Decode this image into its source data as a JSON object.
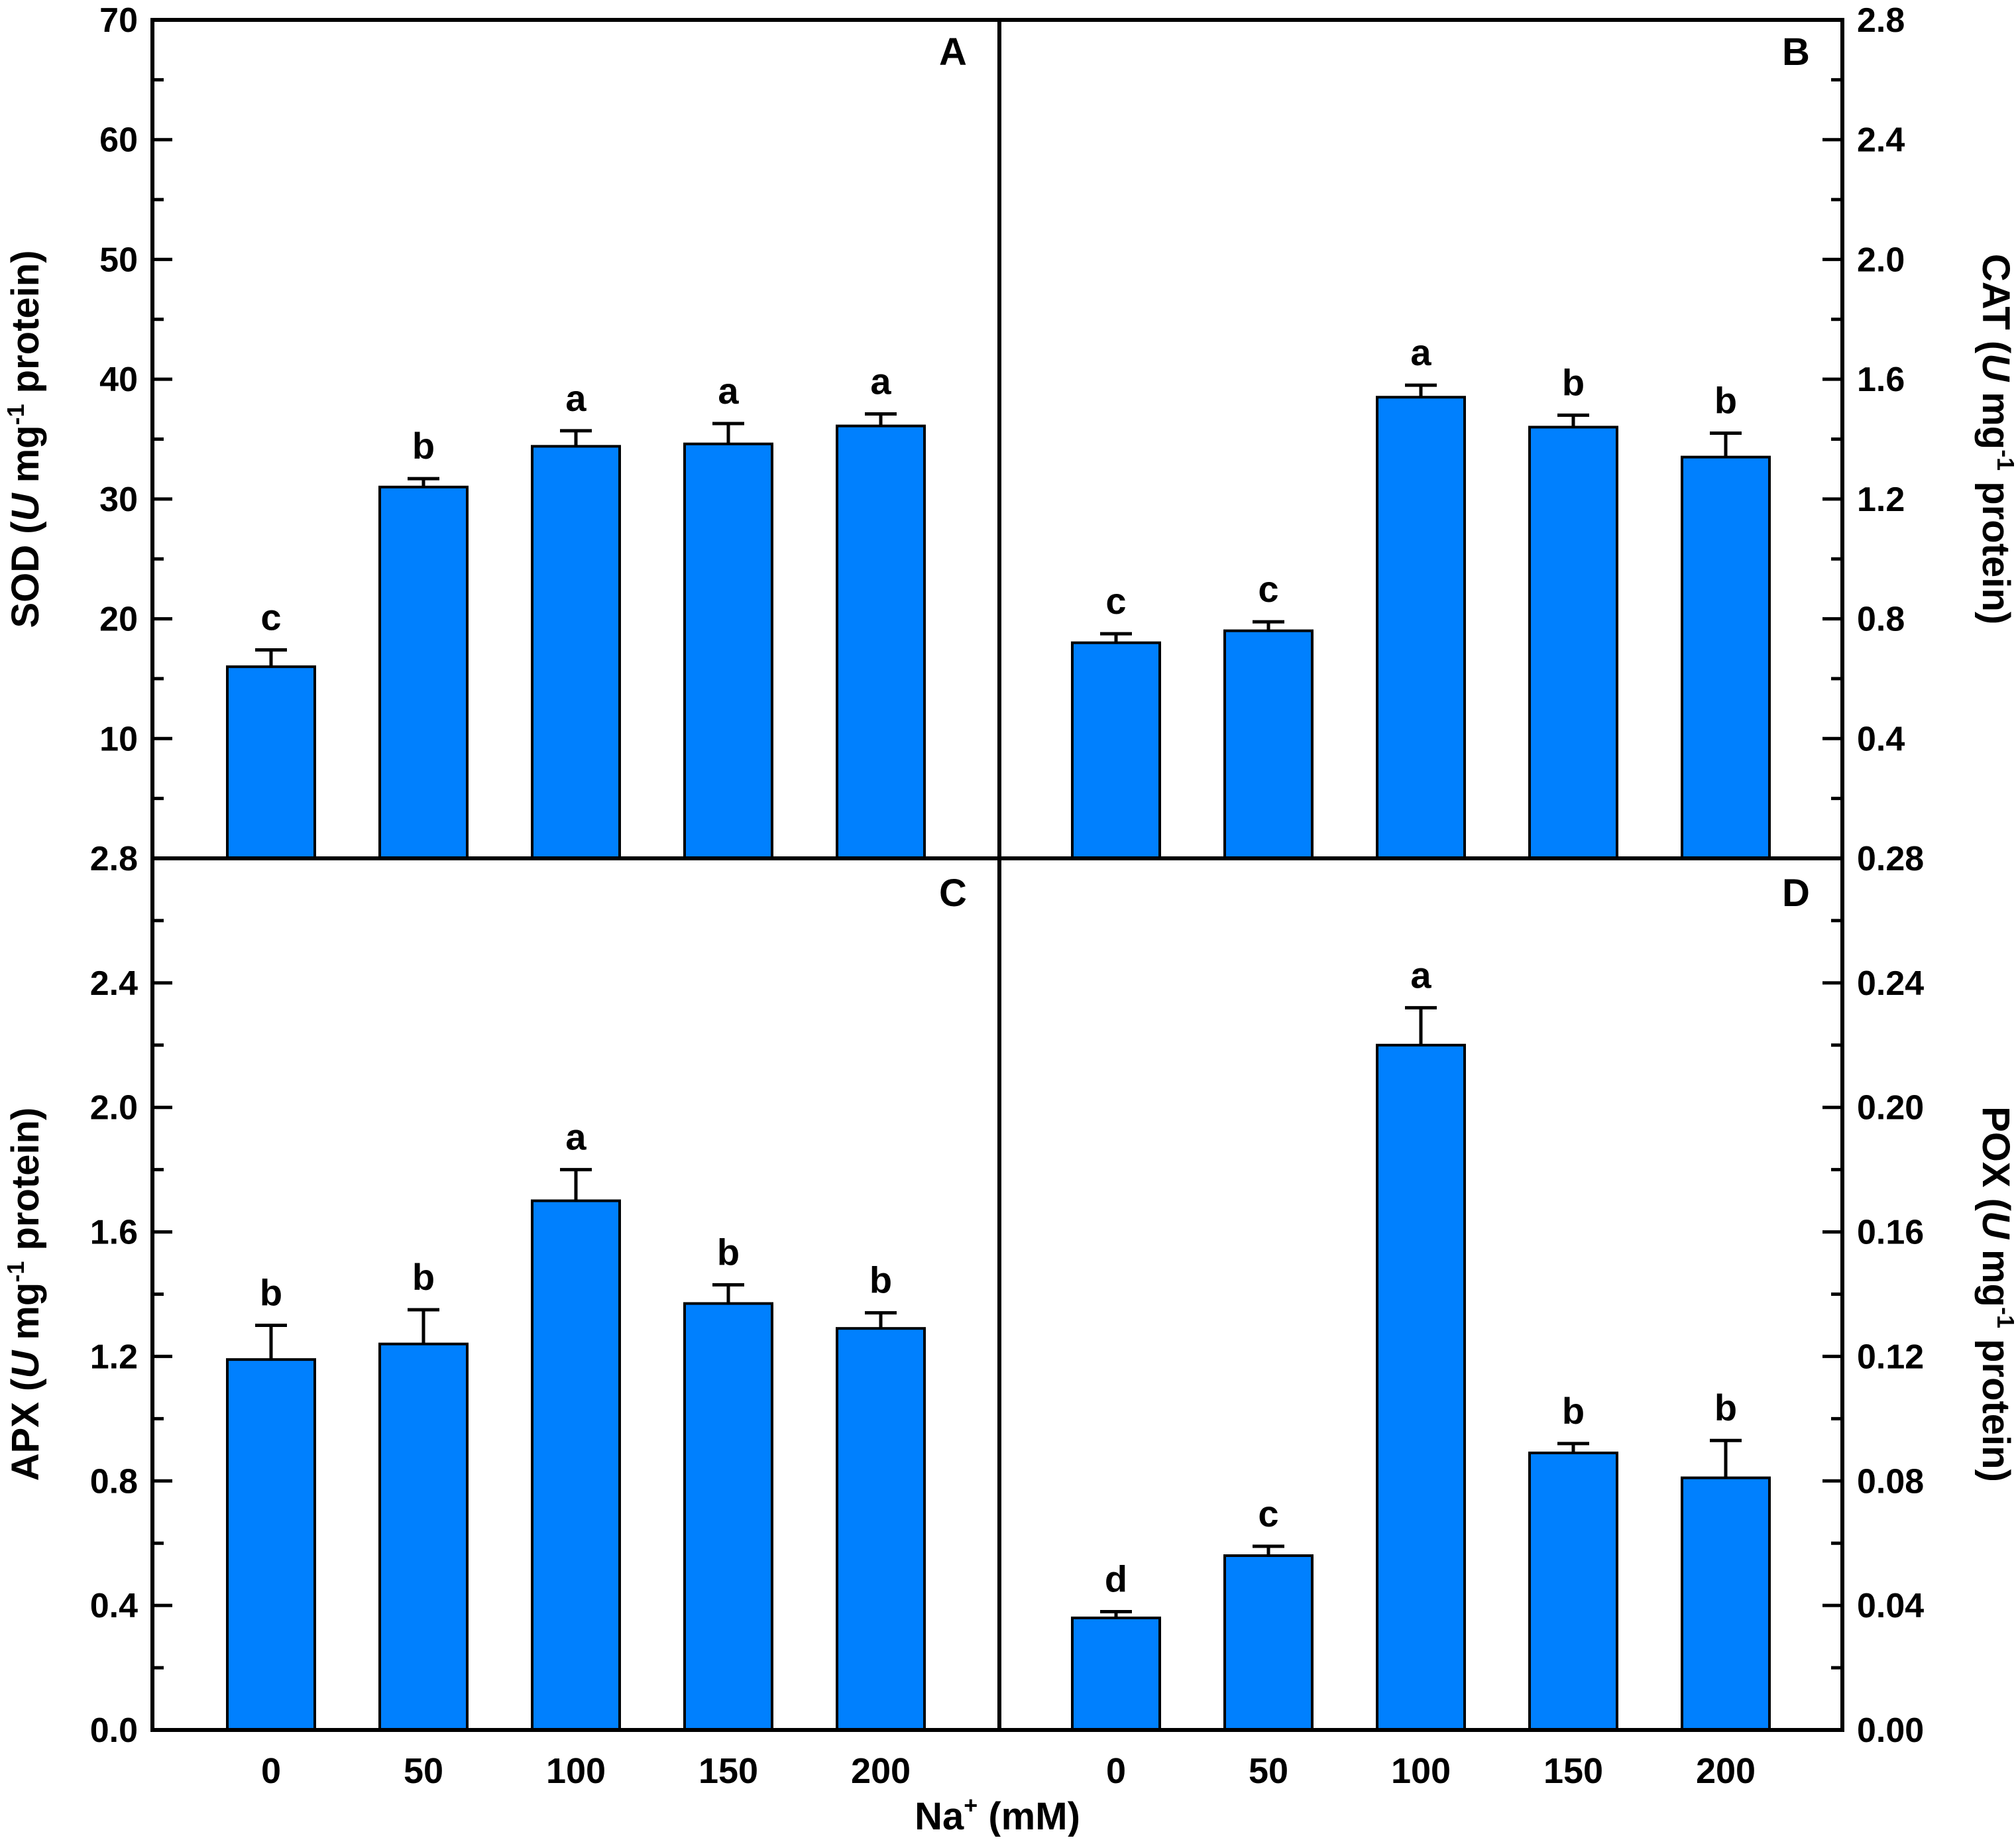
{
  "figure": {
    "background": "#FFFFFF",
    "bar_color": "#0080FE",
    "bar_outline": "#000000",
    "axis_color": "#000000",
    "x_axis": {
      "title_base": "Na",
      "title_sup": "+",
      "title_rest": " (mM)",
      "categories": [
        "0",
        "50",
        "100",
        "150",
        "200"
      ]
    },
    "unit_label": {
      "open": " (",
      "u": "U",
      "mid": " mg",
      "sup": "-1",
      "close": " protein)"
    },
    "panel_letters": [
      "A",
      "B",
      "C",
      "D"
    ]
  },
  "chart_data": [
    {
      "panel": "A",
      "type": "bar",
      "position": "top-left",
      "axis_side": "left",
      "enzyme": "SOD",
      "ylabel_text": "SOD (U mg-1 protein)",
      "categories": [
        "0",
        "50",
        "100",
        "150",
        "200"
      ],
      "values": [
        16.0,
        31.0,
        34.4,
        34.6,
        36.1
      ],
      "errors": [
        1.4,
        0.7,
        1.3,
        1.7,
        1.0
      ],
      "sig_letters": [
        "c",
        "b",
        "a",
        "a",
        "a"
      ],
      "ylim": [
        0,
        70
      ],
      "ytick_values": [
        10,
        20,
        30,
        40,
        50,
        60,
        70
      ],
      "ytick_labels": [
        "10",
        "20",
        "30",
        "40",
        "50",
        "60",
        "70"
      ],
      "minor_tick_step": 5,
      "major_tick_step": 10
    },
    {
      "panel": "B",
      "type": "bar",
      "position": "top-right",
      "axis_side": "right",
      "enzyme": "CAT",
      "ylabel_text": "CAT (U mg-1 protein)",
      "categories": [
        "0",
        "50",
        "100",
        "150",
        "200"
      ],
      "values": [
        0.72,
        0.76,
        1.54,
        1.44,
        1.34
      ],
      "errors": [
        0.03,
        0.03,
        0.04,
        0.04,
        0.08
      ],
      "sig_letters": [
        "c",
        "c",
        "a",
        "b",
        "b"
      ],
      "ylim": [
        0,
        2.8
      ],
      "ytick_values": [
        0.4,
        0.8,
        1.2,
        1.6,
        2.0,
        2.4,
        2.8
      ],
      "ytick_labels": [
        "0.4",
        "0.8",
        "1.2",
        "1.6",
        "2.0",
        "2.4",
        "2.8"
      ],
      "minor_tick_step": 0.2,
      "major_tick_step": 0.4
    },
    {
      "panel": "C",
      "type": "bar",
      "position": "bottom-left",
      "axis_side": "left",
      "enzyme": "APX",
      "ylabel_text": "APX (U mg-1 protein)",
      "categories": [
        "0",
        "50",
        "100",
        "150",
        "200"
      ],
      "values": [
        1.19,
        1.24,
        1.7,
        1.37,
        1.29
      ],
      "errors": [
        0.11,
        0.11,
        0.1,
        0.06,
        0.05
      ],
      "sig_letters": [
        "b",
        "b",
        "a",
        "b",
        "b"
      ],
      "ylim": [
        0,
        2.8
      ],
      "ytick_values": [
        0.0,
        0.4,
        0.8,
        1.2,
        1.6,
        2.0,
        2.4,
        2.8
      ],
      "ytick_labels": [
        "0.0",
        "0.4",
        "0.8",
        "1.2",
        "1.6",
        "2.0",
        "2.4",
        "2.8"
      ],
      "minor_tick_step": 0.2,
      "major_tick_step": 0.4
    },
    {
      "panel": "D",
      "type": "bar",
      "position": "bottom-right",
      "axis_side": "right",
      "enzyme": "POX",
      "ylabel_text": "POX (U mg-1 protein)",
      "categories": [
        "0",
        "50",
        "100",
        "150",
        "200"
      ],
      "values": [
        0.036,
        0.056,
        0.22,
        0.089,
        0.081
      ],
      "errors": [
        0.002,
        0.003,
        0.012,
        0.003,
        0.012
      ],
      "sig_letters": [
        "d",
        "c",
        "a",
        "b",
        "b"
      ],
      "ylim": [
        0,
        0.28
      ],
      "ytick_values": [
        0.0,
        0.04,
        0.08,
        0.12,
        0.16,
        0.2,
        0.24,
        0.28
      ],
      "ytick_labels": [
        "0.00",
        "0.04",
        "0.08",
        "0.12",
        "0.16",
        "0.20",
        "0.24",
        "0.28"
      ],
      "minor_tick_step": 0.02,
      "major_tick_step": 0.04
    }
  ]
}
